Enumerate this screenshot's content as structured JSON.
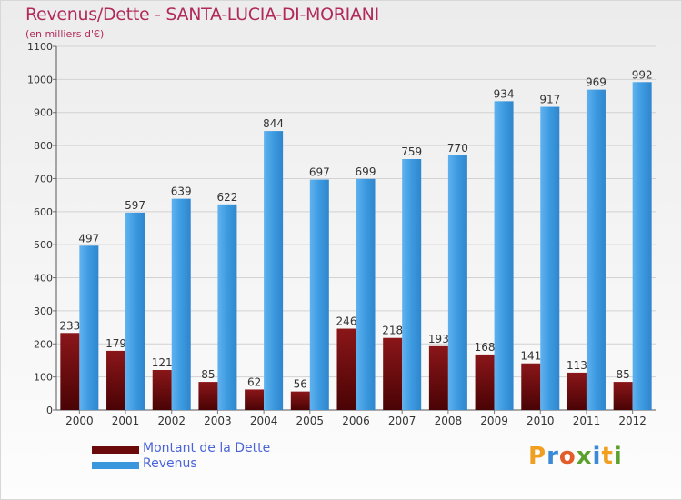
{
  "header": {
    "title": "Revenus/Dette - SANTA-LUCIA-DI-MORIANI",
    "subtitle": "(en milliers d'€)"
  },
  "colors": {
    "dette": "#7a0f12",
    "revenus": "#3a97dd",
    "title": "#b12a5a",
    "legend_text": "#4a64d8"
  },
  "legend": {
    "items": [
      {
        "label": "Montant de la Dette",
        "color": "#6b0a0a"
      },
      {
        "label": "Revenus",
        "color": "#3a97dd"
      }
    ]
  },
  "logo": {
    "letters": [
      "P",
      "r",
      "o",
      "x",
      "i",
      "t",
      "i"
    ],
    "colors": [
      "#f0a020",
      "#3a8ad6",
      "#e35d2a",
      "#5aa02c",
      "#3a8ad6",
      "#f0a020",
      "#5aa02c"
    ]
  },
  "chart_data": {
    "type": "bar",
    "title": "Revenus/Dette - SANTA-LUCIA-DI-MORIANI",
    "subtitle": "(en milliers d'€)",
    "categories": [
      "2000",
      "2001",
      "2002",
      "2003",
      "2004",
      "2005",
      "2006",
      "2007",
      "2008",
      "2009",
      "2010",
      "2011",
      "2012"
    ],
    "series": [
      {
        "name": "Montant de la Dette",
        "values": [
          233,
          179,
          121,
          85,
          62,
          56,
          246,
          218,
          193,
          168,
          141,
          113,
          85
        ]
      },
      {
        "name": "Revenus",
        "values": [
          497,
          597,
          639,
          622,
          844,
          697,
          699,
          759,
          770,
          934,
          917,
          969,
          992
        ]
      }
    ],
    "ylim": [
      0,
      1100
    ],
    "yticks": [
      0,
      100,
      200,
      300,
      400,
      500,
      600,
      700,
      800,
      900,
      1000,
      1100
    ],
    "grid": true,
    "legend_position": "bottom-left"
  }
}
